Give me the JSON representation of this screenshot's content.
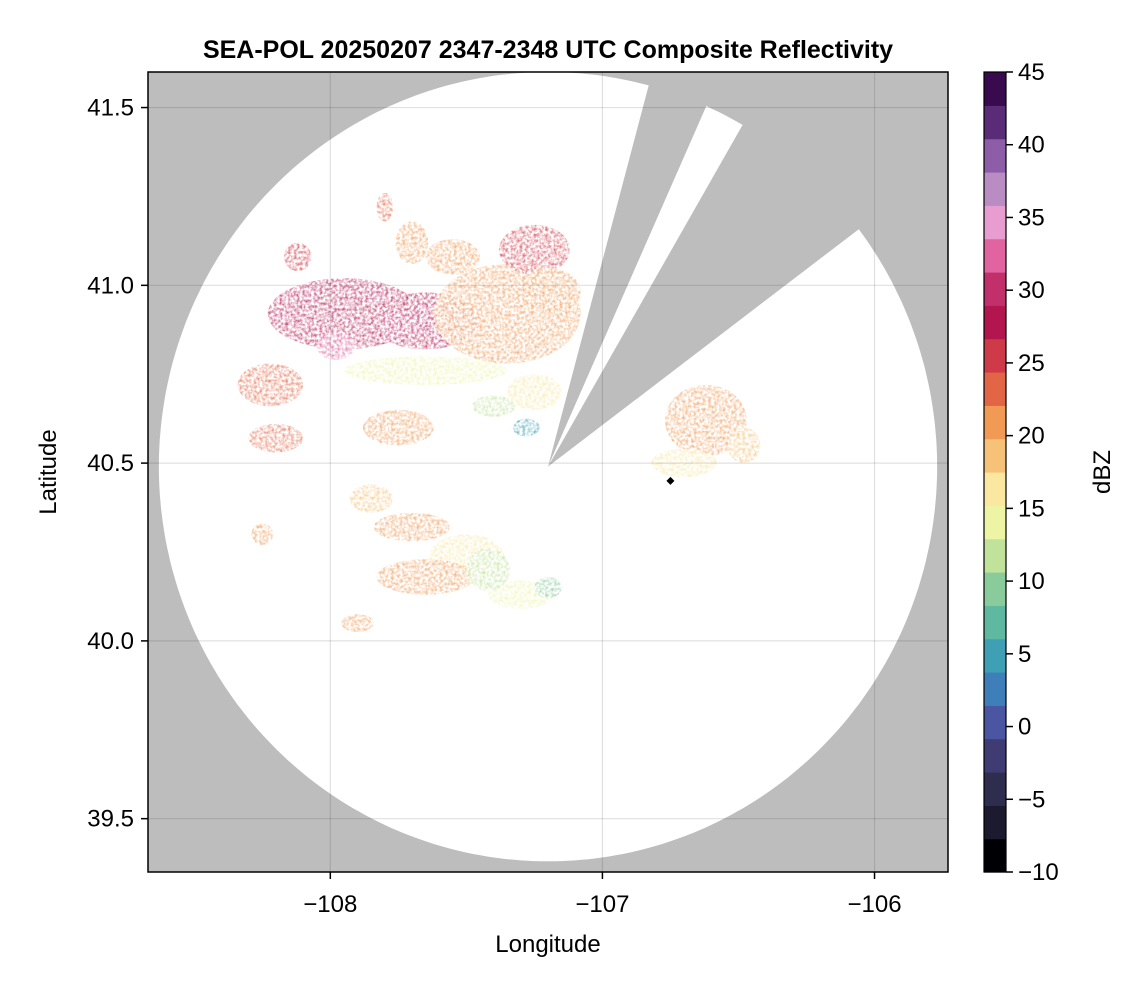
{
  "chart_data": {
    "type": "heatmap",
    "title": "SEA-POL 20250207 2347-2348 UTC Composite Reflectivity",
    "xlabel": "Longitude",
    "ylabel": "Latitude",
    "xlim": [
      -108.67,
      -105.73
    ],
    "ylim": [
      39.35,
      41.6
    ],
    "xticks": [
      -108,
      -107,
      -106
    ],
    "xtick_labels": [
      "−108",
      "−107",
      "−106"
    ],
    "yticks": [
      39.5,
      40.0,
      40.5,
      41.0,
      41.5
    ],
    "ytick_labels": [
      "39.5",
      "40.0",
      "40.5",
      "41.0",
      "41.5"
    ],
    "grid": true,
    "no_data_color": "#bdbdbd",
    "radar": {
      "center": [
        -107.2,
        40.49
      ],
      "range_lat_deg": 1.11,
      "range_lon_deg": 1.43,
      "blocked_sectors_deg_from_north": [
        [
          15,
          24
        ],
        [
          30,
          53
        ]
      ]
    },
    "site_marker": [
      -106.75,
      40.45
    ],
    "colorbar": {
      "label": "dBZ",
      "min": -10,
      "max": 45,
      "ticks": [
        -10,
        -5,
        0,
        5,
        10,
        15,
        20,
        25,
        30,
        35,
        40,
        45
      ],
      "tick_labels": [
        "−10",
        "−5",
        "0",
        "5",
        "10",
        "15",
        "20",
        "25",
        "30",
        "35",
        "40",
        "45"
      ],
      "colors": [
        "#000004",
        "#1c1a2e",
        "#2f2d4e",
        "#3e3c73",
        "#4a56a2",
        "#3f7fb9",
        "#3f9fb5",
        "#5fb8a0",
        "#8acb9c",
        "#c0e29b",
        "#edf5a4",
        "#fae7a0",
        "#f6c277",
        "#f09a55",
        "#e26645",
        "#cf3a48",
        "#b3164e",
        "#c2306c",
        "#e163a0",
        "#e79dcf",
        "#b98dc4",
        "#8e5da8",
        "#5a2b77",
        "#3a0a4e"
      ]
    },
    "echo_cells": [
      {
        "lon": -107.95,
        "lat": 40.92,
        "rx": 0.28,
        "ry": 0.1,
        "dbz": 27
      },
      {
        "lon": -107.65,
        "lat": 40.9,
        "rx": 0.2,
        "ry": 0.08,
        "dbz": 28
      },
      {
        "lon": -107.98,
        "lat": 40.83,
        "rx": 0.07,
        "ry": 0.04,
        "dbz": 33
      },
      {
        "lon": -107.76,
        "lat": 40.89,
        "rx": 0.07,
        "ry": 0.04,
        "dbz": 31
      },
      {
        "lon": -107.35,
        "lat": 40.92,
        "rx": 0.27,
        "ry": 0.14,
        "dbz": 21
      },
      {
        "lon": -107.25,
        "lat": 41.1,
        "rx": 0.13,
        "ry": 0.07,
        "dbz": 26
      },
      {
        "lon": -107.2,
        "lat": 40.98,
        "rx": 0.12,
        "ry": 0.07,
        "dbz": 21
      },
      {
        "lon": -107.55,
        "lat": 41.08,
        "rx": 0.1,
        "ry": 0.05,
        "dbz": 20
      },
      {
        "lon": -107.7,
        "lat": 41.12,
        "rx": 0.06,
        "ry": 0.06,
        "dbz": 20
      },
      {
        "lon": -108.12,
        "lat": 41.08,
        "rx": 0.05,
        "ry": 0.04,
        "dbz": 26
      },
      {
        "lon": -107.8,
        "lat": 41.22,
        "rx": 0.03,
        "ry": 0.04,
        "dbz": 24
      },
      {
        "lon": -108.22,
        "lat": 40.72,
        "rx": 0.12,
        "ry": 0.06,
        "dbz": 23
      },
      {
        "lon": -108.2,
        "lat": 40.57,
        "rx": 0.1,
        "ry": 0.04,
        "dbz": 23
      },
      {
        "lon": -107.75,
        "lat": 40.6,
        "rx": 0.13,
        "ry": 0.05,
        "dbz": 21
      },
      {
        "lon": -107.65,
        "lat": 40.76,
        "rx": 0.3,
        "ry": 0.04,
        "dbz": 15
      },
      {
        "lon": -107.25,
        "lat": 40.7,
        "rx": 0.1,
        "ry": 0.05,
        "dbz": 17
      },
      {
        "lon": -107.28,
        "lat": 40.6,
        "rx": 0.05,
        "ry": 0.025,
        "dbz": 4
      },
      {
        "lon": -107.4,
        "lat": 40.66,
        "rx": 0.08,
        "ry": 0.03,
        "dbz": 11
      },
      {
        "lon": -106.62,
        "lat": 40.62,
        "rx": 0.15,
        "ry": 0.1,
        "dbz": 22
      },
      {
        "lon": -106.7,
        "lat": 40.5,
        "rx": 0.12,
        "ry": 0.04,
        "dbz": 16
      },
      {
        "lon": -106.48,
        "lat": 40.55,
        "rx": 0.06,
        "ry": 0.05,
        "dbz": 18
      },
      {
        "lon": -107.7,
        "lat": 40.32,
        "rx": 0.14,
        "ry": 0.04,
        "dbz": 21
      },
      {
        "lon": -107.85,
        "lat": 40.4,
        "rx": 0.08,
        "ry": 0.04,
        "dbz": 18
      },
      {
        "lon": -107.5,
        "lat": 40.23,
        "rx": 0.14,
        "ry": 0.07,
        "dbz": 16
      },
      {
        "lon": -107.65,
        "lat": 40.18,
        "rx": 0.18,
        "ry": 0.05,
        "dbz": 22
      },
      {
        "lon": -107.3,
        "lat": 40.13,
        "rx": 0.12,
        "ry": 0.04,
        "dbz": 14
      },
      {
        "lon": -107.42,
        "lat": 40.2,
        "rx": 0.08,
        "ry": 0.06,
        "dbz": 12
      },
      {
        "lon": -107.9,
        "lat": 40.05,
        "rx": 0.06,
        "ry": 0.025,
        "dbz": 22
      },
      {
        "lon": -108.25,
        "lat": 40.3,
        "rx": 0.04,
        "ry": 0.03,
        "dbz": 20
      },
      {
        "lon": -107.2,
        "lat": 40.15,
        "rx": 0.05,
        "ry": 0.03,
        "dbz": 9
      }
    ]
  }
}
